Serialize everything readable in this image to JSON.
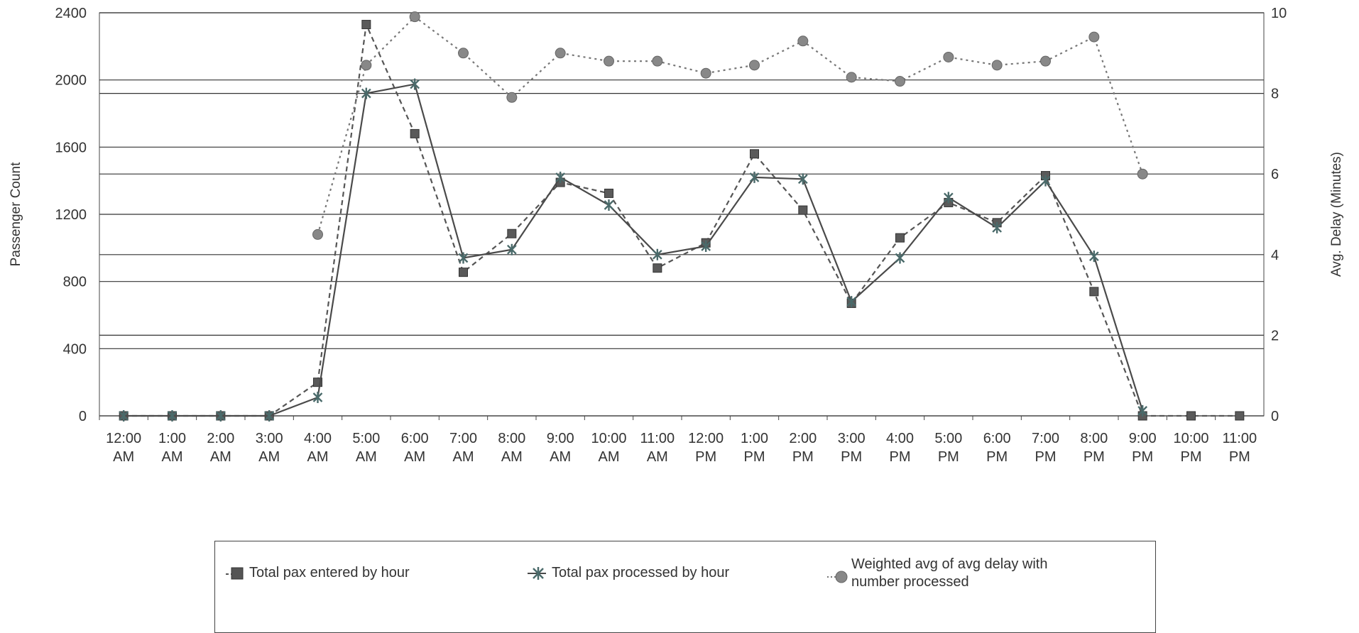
{
  "chart_data": {
    "type": "line",
    "categories": [
      "12:00 AM",
      "1:00 AM",
      "2:00 AM",
      "3:00 AM",
      "4:00 AM",
      "5:00 AM",
      "6:00 AM",
      "7:00 AM",
      "8:00 AM",
      "9:00 AM",
      "10:00 AM",
      "11:00 AM",
      "12:00 PM",
      "1:00 PM",
      "2:00 PM",
      "3:00 PM",
      "4:00 PM",
      "5:00 PM",
      "6:00 PM",
      "7:00 PM",
      "8:00 PM",
      "9:00 PM",
      "10:00 PM",
      "11:00 PM"
    ],
    "category_lines": [
      [
        "12:00",
        "AM"
      ],
      [
        "1:00",
        "AM"
      ],
      [
        "2:00",
        "AM"
      ],
      [
        "3:00",
        "AM"
      ],
      [
        "4:00",
        "AM"
      ],
      [
        "5:00",
        "AM"
      ],
      [
        "6:00",
        "AM"
      ],
      [
        "7:00",
        "AM"
      ],
      [
        "8:00",
        "AM"
      ],
      [
        "9:00",
        "AM"
      ],
      [
        "10:00",
        "AM"
      ],
      [
        "11:00",
        "AM"
      ],
      [
        "12:00",
        "PM"
      ],
      [
        "1:00",
        "PM"
      ],
      [
        "2:00",
        "PM"
      ],
      [
        "3:00",
        "PM"
      ],
      [
        "4:00",
        "PM"
      ],
      [
        "5:00",
        "PM"
      ],
      [
        "6:00",
        "PM"
      ],
      [
        "7:00",
        "PM"
      ],
      [
        "8:00",
        "PM"
      ],
      [
        "9:00",
        "PM"
      ],
      [
        "10:00",
        "PM"
      ],
      [
        "11:00",
        "PM"
      ]
    ],
    "ylabel": "Passenger Count",
    "y2label": "Avg. Delay (Minutes)",
    "ylim": [
      0,
      2400
    ],
    "y2lim": [
      0,
      10
    ],
    "yticks": [
      "0",
      "400",
      "800",
      "1200",
      "1600",
      "2000",
      "2400"
    ],
    "y2ticks": [
      "0",
      "2",
      "4",
      "6",
      "8",
      "10"
    ],
    "grid": "horizontal, both axes",
    "legend_position": "bottom",
    "series": [
      {
        "name": "Total pax entered by hour",
        "axis": "left",
        "marker": "square",
        "line": "dashed",
        "color": "#555555",
        "values": [
          0,
          0,
          0,
          0,
          200,
          2330,
          1680,
          855,
          1085,
          1390,
          1325,
          880,
          1030,
          1560,
          1225,
          670,
          1060,
          1270,
          1150,
          1430,
          740,
          0,
          0,
          0
        ]
      },
      {
        "name": "Total pax processed by hour",
        "axis": "left",
        "marker": "star",
        "line": "solid",
        "color": "#4a4a4a",
        "values": [
          0,
          0,
          0,
          0,
          110,
          1920,
          1975,
          940,
          990,
          1420,
          1255,
          960,
          1010,
          1420,
          1410,
          680,
          940,
          1300,
          1120,
          1400,
          950,
          30,
          null,
          null
        ]
      },
      {
        "name": "Weighted avg of avg delay with number processed",
        "axis": "right",
        "marker": "circle",
        "line": "dotted",
        "color": "#777777",
        "values": [
          null,
          null,
          null,
          null,
          4.5,
          8.7,
          9.9,
          9.0,
          7.9,
          9.0,
          8.8,
          8.8,
          8.5,
          8.7,
          9.3,
          8.4,
          8.3,
          8.9,
          8.7,
          8.8,
          9.4,
          6.0,
          null,
          null
        ]
      }
    ]
  },
  "legend": {
    "items": [
      {
        "label": "Total pax entered by hour"
      },
      {
        "label": "Total pax processed by hour"
      },
      {
        "label_lines": [
          "Weighted avg of avg delay with",
          "number processed"
        ]
      }
    ]
  }
}
